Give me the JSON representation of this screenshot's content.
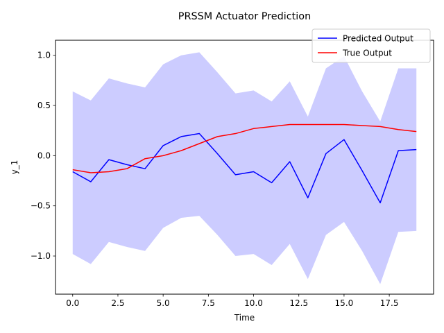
{
  "chart_data": {
    "type": "line",
    "title": "PRSSM Actuator Prediction",
    "xlabel": "Time",
    "ylabel": "y_1",
    "xlim": [
      -0.95,
      19.95
    ],
    "ylim": [
      -1.38,
      1.15
    ],
    "xticks": [
      0.0,
      2.5,
      5.0,
      7.5,
      10.0,
      12.5,
      15.0,
      17.5
    ],
    "xtick_labels": [
      "0.0",
      "2.5",
      "5.0",
      "7.5",
      "10.0",
      "12.5",
      "15.0",
      "17.5"
    ],
    "yticks": [
      -1.0,
      -0.5,
      0.0,
      0.5,
      1.0
    ],
    "ytick_labels": [
      "−1.0",
      "−0.5",
      "0.0",
      "0.5",
      "1.0"
    ],
    "grid": false,
    "legend_position": "top-right",
    "x": [
      0,
      1,
      2,
      3,
      4,
      5,
      6,
      7,
      8,
      9,
      10,
      11,
      12,
      13,
      14,
      15,
      16,
      17,
      18,
      19
    ],
    "series": [
      {
        "name": "Predicted Output",
        "color": "#0000ff",
        "values": [
          -0.16,
          -0.26,
          -0.04,
          -0.09,
          -0.13,
          0.1,
          0.19,
          0.22,
          0.02,
          -0.19,
          -0.16,
          -0.27,
          -0.06,
          -0.42,
          0.02,
          0.16,
          -0.15,
          -0.47,
          0.05,
          0.06
        ]
      },
      {
        "name": "True Output",
        "color": "#ff0000",
        "values": [
          -0.14,
          -0.17,
          -0.16,
          -0.13,
          -0.03,
          0.0,
          0.05,
          0.12,
          0.19,
          0.22,
          0.27,
          0.29,
          0.31,
          0.31,
          0.31,
          0.31,
          0.3,
          0.29,
          0.26,
          0.24
        ]
      }
    ],
    "confidence_band": {
      "color": "#ccccff",
      "upper": [
        0.64,
        0.55,
        0.77,
        0.72,
        0.68,
        0.91,
        1.0,
        1.03,
        0.83,
        0.62,
        0.65,
        0.54,
        0.74,
        0.39,
        0.87,
        0.99,
        0.64,
        0.34,
        0.87,
        0.87
      ],
      "lower": [
        -0.98,
        -1.08,
        -0.86,
        -0.91,
        -0.95,
        -0.72,
        -0.62,
        -0.6,
        -0.79,
        -1.0,
        -0.98,
        -1.09,
        -0.88,
        -1.23,
        -0.79,
        -0.66,
        -0.95,
        -1.28,
        -0.76,
        -0.75
      ]
    }
  }
}
